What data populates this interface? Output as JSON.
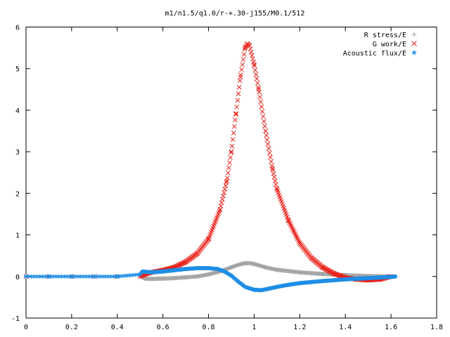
{
  "chart_data": {
    "type": "scatter",
    "title": "m1/n1.5/q1.0/r-+.30-j155/M0.1/512",
    "xlim": [
      0,
      1.8
    ],
    "ylim": [
      -1,
      6
    ],
    "xticks": [
      "0",
      "0.2",
      "0.4",
      "0.6",
      "0.8",
      "1",
      "1.2",
      "1.4",
      "1.6",
      "1.8"
    ],
    "yticks": [
      "-1",
      "0",
      "1",
      "2",
      "3",
      "4",
      "5",
      "6"
    ],
    "legend_position": "top-right",
    "series": [
      {
        "name": "R stress/E",
        "color": "#a0a0a0",
        "marker": "plus",
        "x": [
          0.0,
          0.1,
          0.2,
          0.3,
          0.4,
          0.5,
          0.52,
          0.55,
          0.6,
          0.65,
          0.7,
          0.75,
          0.8,
          0.85,
          0.9,
          0.93,
          0.96,
          0.98,
          1.0,
          1.05,
          1.1,
          1.2,
          1.3,
          1.4,
          1.5,
          1.6
        ],
        "y": [
          0.0,
          0.0,
          0.0,
          0.0,
          0.0,
          0.0,
          -0.05,
          -0.06,
          -0.05,
          -0.04,
          -0.02,
          0.0,
          0.05,
          0.12,
          0.22,
          0.28,
          0.32,
          0.32,
          0.3,
          0.22,
          0.16,
          0.1,
          0.06,
          0.03,
          0.01,
          0.0
        ]
      },
      {
        "name": "G work/E",
        "color": "#e8231c",
        "marker": "cross",
        "x": [
          0.0,
          0.1,
          0.2,
          0.3,
          0.4,
          0.5,
          0.52,
          0.55,
          0.6,
          0.65,
          0.7,
          0.75,
          0.8,
          0.85,
          0.88,
          0.9,
          0.92,
          0.94,
          0.96,
          0.97,
          0.98,
          1.0,
          1.02,
          1.05,
          1.08,
          1.1,
          1.15,
          1.2,
          1.25,
          1.3,
          1.35,
          1.4,
          1.45,
          1.5,
          1.55,
          1.6
        ],
        "y": [
          0.0,
          0.0,
          0.0,
          0.0,
          0.0,
          0.0,
          0.05,
          0.1,
          0.15,
          0.22,
          0.35,
          0.55,
          0.9,
          1.6,
          2.3,
          3.0,
          3.9,
          4.8,
          5.5,
          5.6,
          5.55,
          5.1,
          4.5,
          3.5,
          2.6,
          2.1,
          1.35,
          0.8,
          0.45,
          0.22,
          0.07,
          -0.03,
          -0.07,
          -0.09,
          -0.07,
          0.0
        ]
      },
      {
        "name": "Acoustic flux/E",
        "color": "#1e8ee6",
        "marker": "star",
        "x": [
          0.0,
          0.1,
          0.2,
          0.3,
          0.4,
          0.5,
          0.51,
          0.55,
          0.6,
          0.65,
          0.7,
          0.75,
          0.8,
          0.84,
          0.87,
          0.9,
          0.93,
          0.96,
          1.0,
          1.03,
          1.06,
          1.1,
          1.15,
          1.2,
          1.3,
          1.4,
          1.5,
          1.6,
          1.62
        ],
        "y": [
          0.0,
          0.0,
          0.0,
          0.0,
          0.0,
          0.05,
          0.12,
          0.1,
          0.12,
          0.15,
          0.18,
          0.2,
          0.2,
          0.18,
          0.12,
          0.02,
          -0.12,
          -0.25,
          -0.32,
          -0.33,
          -0.3,
          -0.25,
          -0.2,
          -0.16,
          -0.11,
          -0.07,
          -0.04,
          -0.01,
          0.0
        ]
      }
    ]
  }
}
